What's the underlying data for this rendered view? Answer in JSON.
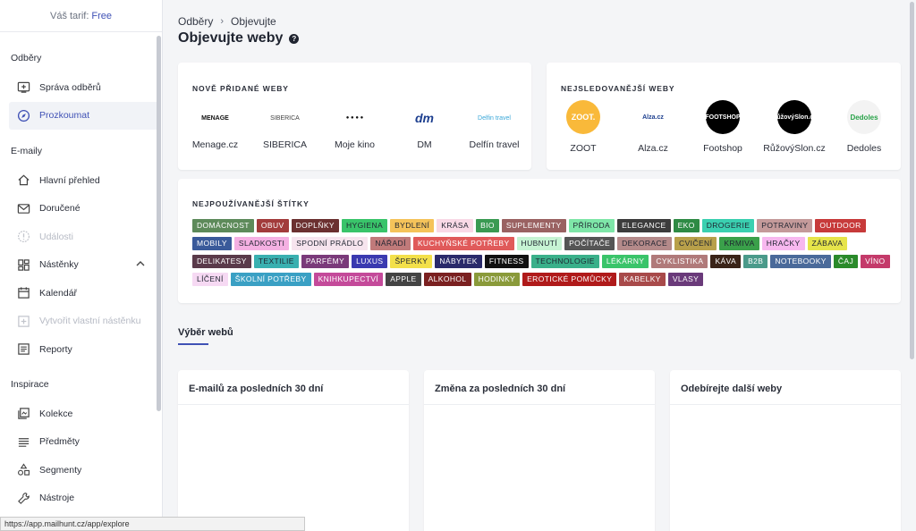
{
  "tariff": {
    "label": "Váš tarif:",
    "plan": "Free"
  },
  "sidebar": {
    "sections": [
      {
        "title": "Odběry",
        "items": [
          {
            "label": "Správa odběrů",
            "icon": "add-box-icon",
            "state": "normal"
          },
          {
            "label": "Prozkoumat",
            "icon": "compass-icon",
            "state": "active"
          }
        ]
      },
      {
        "title": "E-maily",
        "items": [
          {
            "label": "Hlavní přehled",
            "icon": "home-icon",
            "state": "normal"
          },
          {
            "label": "Doručené",
            "icon": "mail-icon",
            "state": "normal"
          },
          {
            "label": "Události",
            "icon": "alert-circle-icon",
            "state": "disabled"
          },
          {
            "label": "Nástěnky",
            "icon": "dashboard-icon",
            "state": "normal"
          },
          {
            "label": "Kalendář",
            "icon": "calendar-icon",
            "state": "normal"
          },
          {
            "label": "Vytvořit vlastní nástěnku",
            "icon": "add-square-icon",
            "state": "disabled"
          },
          {
            "label": "Reporty",
            "icon": "report-icon",
            "state": "normal"
          }
        ]
      },
      {
        "title": "Inspirace",
        "items": [
          {
            "label": "Kolekce",
            "icon": "collection-icon",
            "state": "normal"
          },
          {
            "label": "Předměty",
            "icon": "list-icon",
            "state": "normal"
          },
          {
            "label": "Segmenty",
            "icon": "segments-icon",
            "state": "normal"
          },
          {
            "label": "Nástroje",
            "icon": "wrench-icon",
            "state": "normal"
          }
        ]
      }
    ]
  },
  "breadcrumb": {
    "parent": "Odběry",
    "current": "Objevujte"
  },
  "page_title": "Objevujte weby",
  "new_sites": {
    "heading": "NOVĚ PŘIDANÉ WEBY",
    "items": [
      {
        "name": "Menage.cz",
        "logo": "MENAGE"
      },
      {
        "name": "SIBERICA",
        "logo": "SIBERICA"
      },
      {
        "name": "Moje kino",
        "logo": "● ● ● ●"
      },
      {
        "name": "DM",
        "logo": "dm"
      },
      {
        "name": "Delfín travel",
        "logo": "Delfin travel"
      }
    ]
  },
  "top_sites": {
    "heading": "NEJSLEDOVANĚJŠÍ WEBY",
    "items": [
      {
        "name": "ZOOT",
        "logo": "ZOOT.",
        "bg": "#f9b93a",
        "fg": "#ffffff"
      },
      {
        "name": "Alza.cz",
        "logo": "Alza.cz",
        "bg": "#ffffff",
        "fg": "#1d3f8f"
      },
      {
        "name": "Footshop",
        "logo": "FOOTSHOP",
        "bg": "#000000",
        "fg": "#ffffff"
      },
      {
        "name": "RůžovýSlon.cz",
        "logo": "RůžovýSlon.cz",
        "bg": "#000000",
        "fg": "#ffffff"
      },
      {
        "name": "Dedoles",
        "logo": "Dedoles",
        "bg": "#f3f3f3",
        "fg": "#2aa34a"
      }
    ]
  },
  "tags_card": {
    "heading": "NEJPOUŽÍVANĚJŠÍ ŠTÍTKY",
    "tags": [
      {
        "label": "DOMÁCNOST",
        "color": "#5d8a5a",
        "dark": false
      },
      {
        "label": "OBUV",
        "color": "#a23b3b",
        "dark": false
      },
      {
        "label": "DOPLŇKY",
        "color": "#6b3030",
        "dark": false
      },
      {
        "label": "HYGIENA",
        "color": "#39c46a",
        "dark": true
      },
      {
        "label": "BYDLENÍ",
        "color": "#f5c35a",
        "dark": true
      },
      {
        "label": "KRÁSA",
        "color": "#f9d9e6",
        "dark": true
      },
      {
        "label": "BIO",
        "color": "#3a9a52",
        "dark": false
      },
      {
        "label": "SUPLEMENTY",
        "color": "#9a6262",
        "dark": false
      },
      {
        "label": "PŘÍRODA",
        "color": "#7ee6a8",
        "dark": true
      },
      {
        "label": "ELEGANCE",
        "color": "#3c3c3c",
        "dark": false
      },
      {
        "label": "EKO",
        "color": "#2e8a44",
        "dark": false
      },
      {
        "label": "DROGERIE",
        "color": "#3ad0b0",
        "dark": true
      },
      {
        "label": "POTRAVINY",
        "color": "#c49a9a",
        "dark": true
      },
      {
        "label": "OUTDOOR",
        "color": "#c73a3a",
        "dark": false
      },
      {
        "label": "MOBILY",
        "color": "#3a5a9a",
        "dark": false
      },
      {
        "label": "SLADKOSTI",
        "color": "#f4b0e2",
        "dark": true
      },
      {
        "label": "SPODNÍ PRÁDLO",
        "color": "#f6e4ee",
        "dark": true
      },
      {
        "label": "NÁŘADÍ",
        "color": "#c07a7a",
        "dark": true
      },
      {
        "label": "KUCHYŇSKÉ POTŘEBY",
        "color": "#e05a5a",
        "dark": false
      },
      {
        "label": "HUBNUTÍ",
        "color": "#c6f3d3",
        "dark": true
      },
      {
        "label": "POČÍTAČE",
        "color": "#555555",
        "dark": false
      },
      {
        "label": "DEKORACE",
        "color": "#b48a8a",
        "dark": true
      },
      {
        "label": "CVIČENÍ",
        "color": "#b8a04a",
        "dark": true
      },
      {
        "label": "KRMIVA",
        "color": "#3aa04a",
        "dark": true
      },
      {
        "label": "HRAČKY",
        "color": "#f7b8ef",
        "dark": true
      },
      {
        "label": "ZÁBAVA",
        "color": "#e6e44a",
        "dark": true
      },
      {
        "label": "DELIKATESY",
        "color": "#5a3a4a",
        "dark": false
      },
      {
        "label": "TEXTILIE",
        "color": "#39b0b0",
        "dark": true
      },
      {
        "label": "PARFÉMY",
        "color": "#7a3a7a",
        "dark": false
      },
      {
        "label": "LUXUS",
        "color": "#3a3ab0",
        "dark": false
      },
      {
        "label": "ŠPERKY",
        "color": "#f3e04a",
        "dark": true
      },
      {
        "label": "NÁBYTEK",
        "color": "#2a2a6a",
        "dark": false
      },
      {
        "label": "FITNESS",
        "color": "#111111",
        "dark": false
      },
      {
        "label": "TECHNOLOGIE",
        "color": "#3ab08a",
        "dark": true
      },
      {
        "label": "LÉKÁRNY",
        "color": "#3ac46a",
        "dark": false
      },
      {
        "label": "CYKLISTIKA",
        "color": "#b07a7a",
        "dark": false
      },
      {
        "label": "KÁVA",
        "color": "#3a2418",
        "dark": false
      },
      {
        "label": "B2B",
        "color": "#4a9a8a",
        "dark": false
      },
      {
        "label": "NOTEBOOKY",
        "color": "#4a6a9a",
        "dark": false
      },
      {
        "label": "ČAJ",
        "color": "#2a8a2a",
        "dark": false
      },
      {
        "label": "VÍNO",
        "color": "#c43a6a",
        "dark": false
      },
      {
        "label": "LÍČENÍ",
        "color": "#f6d9f3",
        "dark": true
      },
      {
        "label": "ŠKOLNÍ POTŘEBY",
        "color": "#3aa0c4",
        "dark": false
      },
      {
        "label": "KNIHKUPECTVÍ",
        "color": "#c44a9a",
        "dark": false
      },
      {
        "label": "APPLE",
        "color": "#444444",
        "dark": false
      },
      {
        "label": "ALKOHOL",
        "color": "#7a2020",
        "dark": false
      },
      {
        "label": "HODINKY",
        "color": "#8a9a3a",
        "dark": false
      },
      {
        "label": "EROTICKÉ POMŮCKY",
        "color": "#b01a1a",
        "dark": false
      },
      {
        "label": "KABELKY",
        "color": "#a84a4a",
        "dark": false
      },
      {
        "label": "VLASY",
        "color": "#6a3a7a",
        "dark": false
      }
    ]
  },
  "selection_tab": "Výběr webů",
  "panels": [
    {
      "title": "E-mailů za posledních 30 dní"
    },
    {
      "title": "Změna za posledních 30 dní"
    },
    {
      "title": "Odebírejte další weby"
    }
  ],
  "status_url": "https://app.mailhunt.cz/app/explore"
}
